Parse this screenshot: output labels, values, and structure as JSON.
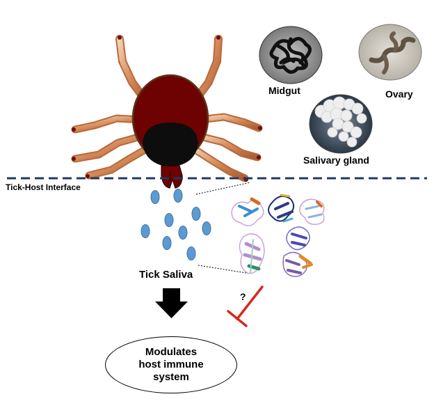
{
  "labels": {
    "midgut": "Midgut",
    "ovary": "Ovary",
    "salivary_gland": "Salivary gland",
    "interface": "Tick-Host Interface",
    "tick_saliva": "Tick Saliva",
    "question": "?",
    "outcome": "Modulates\nhost immune\nsystem"
  },
  "colors": {
    "tick_body": "#6e0202",
    "tick_shield": "#0d0d0d",
    "leg": "#c87a4c",
    "leg_highlight": "#f3d1b5",
    "saliva_drop": "#5b9bd5",
    "interface_line": "#1f3864",
    "inhibit": "#d62a1e"
  },
  "icons": [
    "tick-illustration",
    "tissue-micrograph",
    "protein-structure",
    "down-arrow-icon",
    "inhibition-icon"
  ]
}
